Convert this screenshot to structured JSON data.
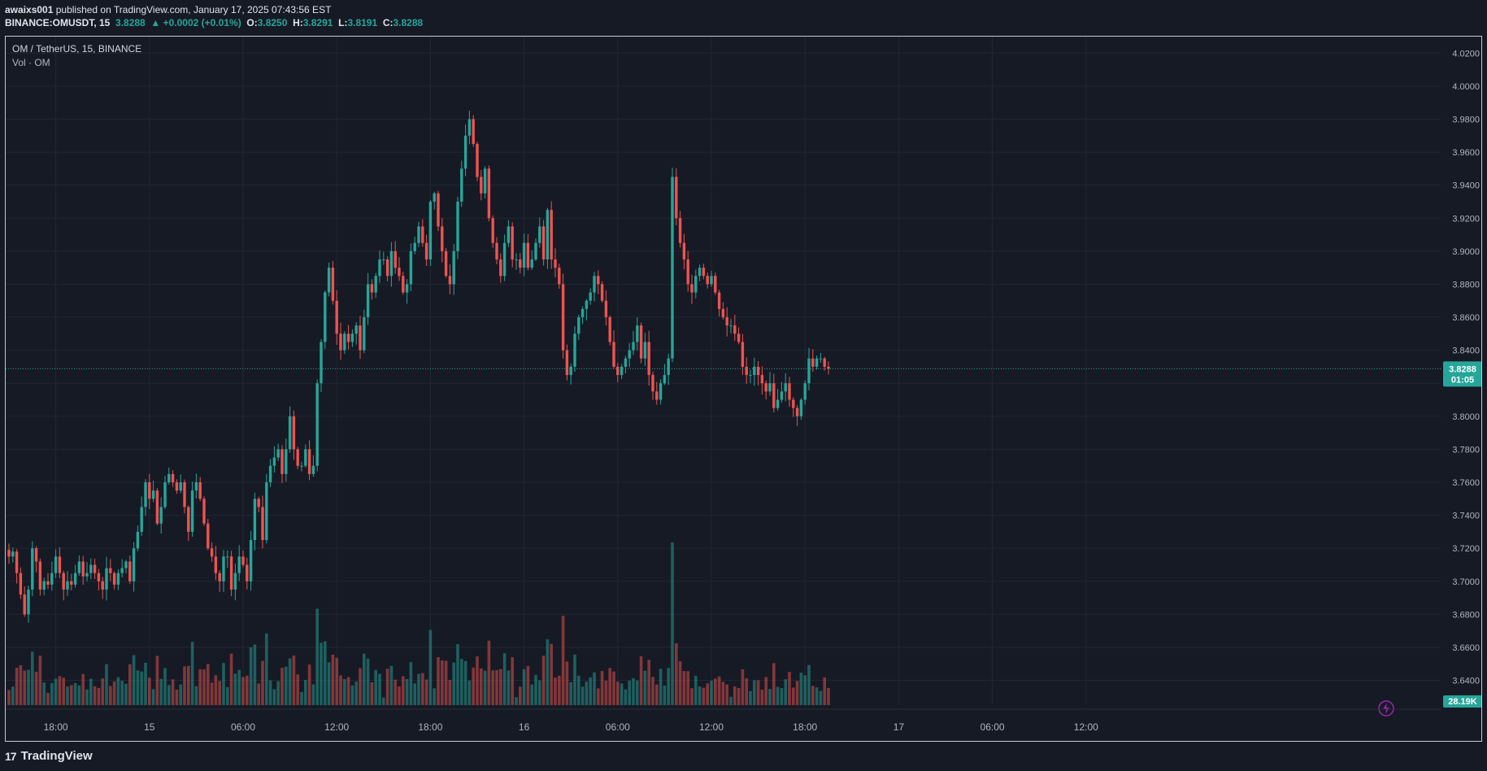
{
  "header": {
    "publisher": "awaixs001",
    "publish_text": " published on TradingView.com, January 17, 2025 07:43:56 EST",
    "symbol_line": "BINANCE:OMUSDT, 15",
    "last": "3.8288",
    "change": "▲ +0.0002 (+0.01%)",
    "o_label": "O:",
    "o": "3.8250",
    "h_label": "H:",
    "h": "3.8291",
    "l_label": "L:",
    "l": "3.8191",
    "c_label": "C:",
    "c": "3.8288"
  },
  "legend": {
    "title": "OM / TetherUS, 15, BINANCE",
    "volume": "Vol · OM"
  },
  "price_badge": {
    "price": "3.8288",
    "countdown": "01:05"
  },
  "volume_badge": "28.19K",
  "footer": {
    "brand": "TradingView",
    "logo": "17"
  },
  "colors": {
    "up": "#26a69a",
    "down": "#ef5350",
    "bg": "#161a25",
    "grid": "#232733",
    "badge": "#26a69a"
  },
  "chart_data": {
    "type": "candlestick",
    "title": "OM / TetherUS, 15, BINANCE",
    "ylim": [
      3.625,
      4.03
    ],
    "y_ticks": [
      "4.0200",
      "4.0000",
      "3.9800",
      "3.9600",
      "3.9400",
      "3.9200",
      "3.9000",
      "3.8800",
      "3.8600",
      "3.8400",
      "3.8200",
      "3.8000",
      "3.7800",
      "3.7600",
      "3.7400",
      "3.7200",
      "3.7000",
      "3.6800",
      "3.6600",
      "3.6400"
    ],
    "x_ticks": [
      {
        "label": "18:00",
        "bar": 12
      },
      {
        "label": "15",
        "bar": 36
      },
      {
        "label": "06:00",
        "bar": 60
      },
      {
        "label": "12:00",
        "bar": 84
      },
      {
        "label": "18:00",
        "bar": 108
      },
      {
        "label": "16",
        "bar": 132
      },
      {
        "label": "06:00",
        "bar": 156
      },
      {
        "label": "12:00",
        "bar": 180
      },
      {
        "label": "18:00",
        "bar": 204
      },
      {
        "label": "17",
        "bar": 228
      },
      {
        "label": "06:00",
        "bar": 252
      },
      {
        "label": "12:00",
        "bar": 276
      }
    ],
    "current_price": 3.8288,
    "close": [
      3.715,
      3.718,
      3.705,
      3.692,
      3.68,
      3.695,
      3.72,
      3.712,
      3.695,
      3.7,
      3.698,
      3.705,
      3.715,
      3.705,
      3.695,
      3.7,
      3.698,
      3.705,
      3.712,
      3.703,
      3.705,
      3.71,
      3.705,
      3.7,
      3.695,
      3.708,
      3.705,
      3.698,
      3.705,
      3.708,
      3.712,
      3.7,
      3.72,
      3.73,
      3.745,
      3.76,
      3.75,
      3.755,
      3.735,
      3.745,
      3.76,
      3.765,
      3.76,
      3.755,
      3.76,
      3.745,
      3.73,
      3.755,
      3.76,
      3.75,
      3.735,
      3.72,
      3.715,
      3.705,
      3.7,
      3.715,
      3.715,
      3.695,
      3.705,
      3.715,
      3.71,
      3.7,
      3.725,
      3.75,
      3.745,
      3.725,
      3.76,
      3.77,
      3.775,
      3.78,
      3.765,
      3.78,
      3.8,
      3.78,
      3.77,
      3.77,
      3.78,
      3.765,
      3.77,
      3.82,
      3.845,
      3.875,
      3.89,
      3.87,
      3.85,
      3.84,
      3.85,
      3.845,
      3.85,
      3.855,
      3.84,
      3.86,
      3.88,
      3.875,
      3.885,
      3.895,
      3.895,
      3.885,
      3.9,
      3.89,
      3.885,
      3.875,
      3.88,
      3.9,
      3.905,
      3.915,
      3.905,
      3.895,
      3.93,
      3.935,
      3.915,
      3.9,
      3.885,
      3.88,
      3.9,
      3.93,
      3.95,
      3.97,
      3.98,
      3.965,
      3.945,
      3.935,
      3.95,
      3.92,
      3.905,
      3.895,
      3.885,
      3.905,
      3.915,
      3.895,
      3.895,
      3.89,
      3.905,
      3.89,
      3.895,
      3.905,
      3.915,
      3.895,
      3.925,
      3.895,
      3.89,
      3.88,
      3.84,
      3.825,
      3.83,
      3.85,
      3.86,
      3.865,
      3.87,
      3.875,
      3.885,
      3.88,
      3.87,
      3.86,
      3.845,
      3.83,
      3.825,
      3.83,
      3.835,
      3.84,
      3.845,
      3.855,
      3.835,
      3.845,
      3.825,
      3.815,
      3.81,
      3.82,
      3.825,
      3.835,
      3.945,
      3.92,
      3.905,
      3.895,
      3.88,
      3.875,
      3.885,
      3.89,
      3.885,
      3.88,
      3.885,
      3.875,
      3.865,
      3.86,
      3.855,
      3.855,
      3.85,
      3.845,
      3.83,
      3.825,
      3.825,
      3.83,
      3.825,
      3.82,
      3.815,
      3.82,
      3.805,
      3.81,
      3.815,
      3.82,
      3.81,
      3.805,
      3.8,
      3.81,
      3.82,
      3.835,
      3.83,
      3.835,
      3.835,
      3.83,
      3.8288
    ],
    "volume_label": "Vol · OM"
  }
}
